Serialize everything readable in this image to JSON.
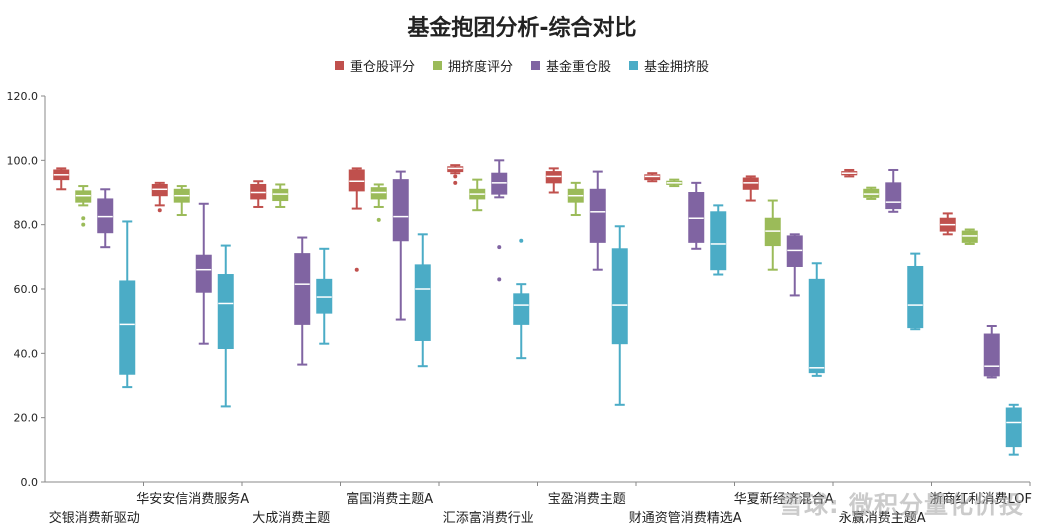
{
  "chart_data": {
    "type": "box",
    "title": "基金抱团分析-综合对比",
    "ylim": [
      0,
      120
    ],
    "yticks": [
      "0.0",
      "20.0",
      "40.0",
      "60.0",
      "80.0",
      "100.0",
      "120.0"
    ],
    "legend_position": "top",
    "categories": [
      "交银消费新驱动",
      "华安安信消费服务A",
      "大成消费主题",
      "富国消费主题A",
      "汇添富消费行业",
      "宝盈消费主题",
      "财通资管消费精选A",
      "华夏新经济混合A",
      "永赢消费主题A",
      "浙商红利消费LOF"
    ],
    "series": [
      {
        "name": "重仓股评分",
        "color": "#c0504d",
        "boxes": [
          {
            "min": 91,
            "q1": 94,
            "median": 95.5,
            "q3": 97,
            "max": 97.5,
            "outliers": []
          },
          {
            "min": 86,
            "q1": 89,
            "median": 91,
            "q3": 92.5,
            "max": 93,
            "outliers": [
              84.5
            ]
          },
          {
            "min": 85.5,
            "q1": 88,
            "median": 90,
            "q3": 92.5,
            "max": 93.5,
            "outliers": []
          },
          {
            "min": 85,
            "q1": 90.5,
            "median": 93.5,
            "q3": 97,
            "max": 97.5,
            "outliers": [
              66
            ]
          },
          {
            "min": 96,
            "q1": 96.5,
            "median": 97.5,
            "q3": 98,
            "max": 98.5,
            "outliers": [
              93,
              95
            ]
          },
          {
            "min": 90,
            "q1": 93,
            "median": 95,
            "q3": 96.5,
            "max": 97.5,
            "outliers": []
          },
          {
            "min": 93.5,
            "q1": 94,
            "median": 95,
            "q3": 95.5,
            "max": 96,
            "outliers": []
          },
          {
            "min": 87.5,
            "q1": 91,
            "median": 93,
            "q3": 94.5,
            "max": 95,
            "outliers": []
          },
          {
            "min": 95,
            "q1": 95.5,
            "median": 96,
            "q3": 96.5,
            "max": 97,
            "outliers": []
          },
          {
            "min": 77,
            "q1": 78,
            "median": 80,
            "q3": 82,
            "max": 83.5,
            "outliers": []
          }
        ]
      },
      {
        "name": "拥挤度评分",
        "color": "#9bbb59",
        "boxes": [
          {
            "min": 86,
            "q1": 87,
            "median": 89,
            "q3": 90.5,
            "max": 92,
            "outliers": [
              80,
              82
            ]
          },
          {
            "min": 83,
            "q1": 87,
            "median": 89,
            "q3": 91,
            "max": 92,
            "outliers": []
          },
          {
            "min": 85.5,
            "q1": 87.5,
            "median": 89.5,
            "q3": 91,
            "max": 92.5,
            "outliers": []
          },
          {
            "min": 85.5,
            "q1": 88,
            "median": 90,
            "q3": 91.5,
            "max": 92.5,
            "outliers": [
              81.5
            ]
          },
          {
            "min": 84.5,
            "q1": 88,
            "median": 89.5,
            "q3": 91,
            "max": 94,
            "outliers": []
          },
          {
            "min": 83,
            "q1": 87,
            "median": 89,
            "q3": 91,
            "max": 93,
            "outliers": []
          },
          {
            "min": 92,
            "q1": 92.5,
            "median": 93,
            "q3": 93.5,
            "max": 94,
            "outliers": []
          },
          {
            "min": 66,
            "q1": 73.5,
            "median": 78,
            "q3": 82,
            "max": 87.5,
            "outliers": []
          },
          {
            "min": 88,
            "q1": 88.5,
            "median": 89.5,
            "q3": 91,
            "max": 91.5,
            "outliers": []
          },
          {
            "min": 74,
            "q1": 74.5,
            "median": 76.5,
            "q3": 78,
            "max": 78.5,
            "outliers": []
          }
        ]
      },
      {
        "name": "基金重仓股",
        "color": "#8064a2",
        "boxes": [
          {
            "min": 73,
            "q1": 77.5,
            "median": 82.5,
            "q3": 88,
            "max": 91,
            "outliers": []
          },
          {
            "min": 43,
            "q1": 59,
            "median": 66,
            "q3": 70.5,
            "max": 86.5,
            "outliers": []
          },
          {
            "min": 36.5,
            "q1": 49,
            "median": 61.5,
            "q3": 71,
            "max": 76,
            "outliers": []
          },
          {
            "min": 50.5,
            "q1": 75,
            "median": 82.5,
            "q3": 94,
            "max": 96.5,
            "outliers": []
          },
          {
            "min": 88.5,
            "q1": 89.5,
            "median": 93,
            "q3": 96,
            "max": 100,
            "outliers": [
              63,
              73
            ]
          },
          {
            "min": 66,
            "q1": 74.5,
            "median": 84,
            "q3": 91,
            "max": 96.5,
            "outliers": []
          },
          {
            "min": 72.5,
            "q1": 74.5,
            "median": 82,
            "q3": 90,
            "max": 93,
            "outliers": []
          },
          {
            "min": 58,
            "q1": 67,
            "median": 72,
            "q3": 76.5,
            "max": 77,
            "outliers": []
          },
          {
            "min": 84,
            "q1": 85,
            "median": 87,
            "q3": 93,
            "max": 97,
            "outliers": []
          },
          {
            "min": 32.5,
            "q1": 33,
            "median": 36,
            "q3": 46,
            "max": 48.5,
            "outliers": []
          }
        ]
      },
      {
        "name": "基金拥挤股",
        "color": "#4bacc6",
        "boxes": [
          {
            "min": 29.5,
            "q1": 33.5,
            "median": 49,
            "q3": 62.5,
            "max": 81,
            "outliers": []
          },
          {
            "min": 23.5,
            "q1": 41.5,
            "median": 55.5,
            "q3": 64.5,
            "max": 73.5,
            "outliers": []
          },
          {
            "min": 43,
            "q1": 52.5,
            "median": 57.5,
            "q3": 63,
            "max": 72.5,
            "outliers": []
          },
          {
            "min": 36,
            "q1": 44,
            "median": 60,
            "q3": 67.5,
            "max": 77,
            "outliers": []
          },
          {
            "min": 38.5,
            "q1": 49,
            "median": 55,
            "q3": 58.5,
            "max": 61.5,
            "outliers": [
              75
            ]
          },
          {
            "min": 24,
            "q1": 43,
            "median": 55,
            "q3": 72.5,
            "max": 79.5,
            "outliers": []
          },
          {
            "min": 64.5,
            "q1": 66,
            "median": 74,
            "q3": 84,
            "max": 86,
            "outliers": []
          },
          {
            "min": 33,
            "q1": 34,
            "median": 35.5,
            "q3": 63,
            "max": 68,
            "outliers": []
          },
          {
            "min": 47.5,
            "q1": 48,
            "median": 55,
            "q3": 67,
            "max": 71,
            "outliers": []
          },
          {
            "min": 8.5,
            "q1": 11,
            "median": 18.5,
            "q3": 23,
            "max": 24,
            "outliers": []
          }
        ]
      }
    ]
  },
  "watermark": "雪球: 微积分量化价投"
}
